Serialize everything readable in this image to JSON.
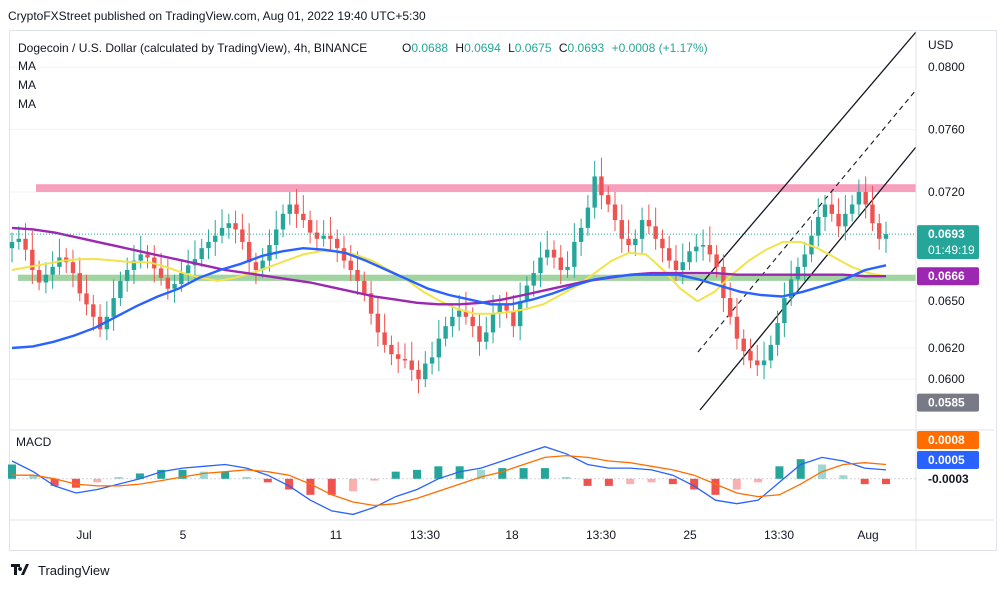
{
  "header": {
    "publisher_line": "CryptoFXStreet published on TradingView.com, Aug 01, 2022 19:40 UTC+5:30",
    "symbol_desc": "Dogecoin / U.S. Dollar (calculated by TradingView), 4h, BINANCE",
    "ohlc": {
      "o_label": "O",
      "o": "0.0688",
      "h_label": "H",
      "h": "0.0694",
      "l_label": "L",
      "l": "0.0675",
      "c_label": "C",
      "c": "0.0693",
      "change": "+0.0008 (+1.17%)"
    },
    "ma_labels": [
      "MA",
      "MA",
      "MA"
    ]
  },
  "footer": {
    "brand": "TradingView"
  },
  "colors": {
    "up": "#26a69a",
    "down": "#ef5350",
    "ma_fast": "#f2e34a",
    "ma_mid": "#9c27b0",
    "ma_slow": "#2962ff",
    "resistance": "#f48fb1",
    "support": "#8bc98b",
    "macd_line": "#2962ff",
    "signal_line": "#ff6d00"
  },
  "chart_data": [
    {
      "type": "candlestick",
      "title": "Dogecoin / U.S. Dollar (calculated by TradingView), 4h, BINANCE",
      "ylabel": "USD",
      "ylim": [
        0.057,
        0.082
      ],
      "y_ticks": [
        "0.0800",
        "0.0760",
        "0.0720",
        "0.0650",
        "0.0620",
        "0.0600"
      ],
      "x_ticks": [
        "Jul",
        "5",
        "11",
        "13:30",
        "18",
        "13:30",
        "25",
        "13:30",
        "Aug"
      ],
      "price_labels": {
        "last": "0.0693",
        "countdown": "01:49:19",
        "ma_value": "0.0666",
        "low_marker": "0.0585"
      },
      "zones": [
        {
          "name": "resistance",
          "from": 0.072,
          "to": 0.0725
        },
        {
          "name": "support",
          "from": 0.0663,
          "to": 0.0667
        }
      ],
      "series": [
        {
          "name": "close",
          "values": [
            0.0688,
            0.069,
            0.0683,
            0.067,
            0.0662,
            0.0667,
            0.0672,
            0.0678,
            0.0675,
            0.0668,
            0.0655,
            0.0648,
            0.064,
            0.0632,
            0.064,
            0.0652,
            0.0663,
            0.067,
            0.0676,
            0.068,
            0.0678,
            0.0671,
            0.0665,
            0.0658,
            0.0661,
            0.0668,
            0.0673,
            0.0677,
            0.0684,
            0.0688,
            0.0692,
            0.0697,
            0.07,
            0.0696,
            0.0688,
            0.0675,
            0.067,
            0.0676,
            0.0686,
            0.0696,
            0.0706,
            0.0712,
            0.0706,
            0.0702,
            0.0694,
            0.069,
            0.0692,
            0.069,
            0.0684,
            0.0676,
            0.067,
            0.0663,
            0.0655,
            0.0642,
            0.063,
            0.0622,
            0.0616,
            0.0613,
            0.0612,
            0.0606,
            0.06,
            0.061,
            0.0614,
            0.0626,
            0.0634,
            0.064,
            0.0644,
            0.064,
            0.0634,
            0.0624,
            0.063,
            0.0642,
            0.0648,
            0.0644,
            0.0634,
            0.065,
            0.066,
            0.0668,
            0.0678,
            0.0683,
            0.0678,
            0.067,
            0.0672,
            0.0688,
            0.0697,
            0.071,
            0.073,
            0.0718,
            0.0712,
            0.0702,
            0.069,
            0.0686,
            0.069,
            0.0702,
            0.0698,
            0.069,
            0.0684,
            0.0676,
            0.067,
            0.0675,
            0.0682,
            0.0685,
            0.0686,
            0.068,
            0.0672,
            0.0652,
            0.064,
            0.0626,
            0.0618,
            0.0612,
            0.0609,
            0.0612,
            0.0622,
            0.0636,
            0.0652,
            0.0664,
            0.0672,
            0.068,
            0.0692,
            0.0704,
            0.0712,
            0.0706,
            0.0698,
            0.0706,
            0.0712,
            0.072,
            0.0712,
            0.07,
            0.069,
            0.0693
          ]
        },
        {
          "name": "MA",
          "values": [
            0.067,
            0.0672,
            0.0674,
            0.0676,
            0.0677,
            0.0677,
            0.0676,
            0.0675,
            0.0675,
            0.0672,
            0.0668,
            0.0665,
            0.0663,
            0.0665,
            0.0668,
            0.0672,
            0.0676,
            0.068,
            0.0682,
            0.0682,
            0.068,
            0.0676,
            0.067,
            0.0664,
            0.0656,
            0.065,
            0.0645,
            0.0642,
            0.0642,
            0.0643,
            0.0645,
            0.0648,
            0.0654,
            0.066,
            0.0668,
            0.0676,
            0.0681,
            0.068,
            0.067,
            0.0658,
            0.065,
            0.0656,
            0.0667,
            0.0676,
            0.0683,
            0.0688,
            0.0688,
            0.0684,
            0.0678,
            0.0672,
            0.0668,
            0.0666
          ]
        },
        {
          "name": "MA",
          "values": [
            0.0697,
            0.0696,
            0.0694,
            0.0691,
            0.0688,
            0.0685,
            0.0682,
            0.0679,
            0.0676,
            0.0673,
            0.067,
            0.0668,
            0.0666,
            0.0664,
            0.0662,
            0.0659,
            0.0656,
            0.0653,
            0.0651,
            0.0649,
            0.0648,
            0.0648,
            0.0649,
            0.0651,
            0.0654,
            0.0657,
            0.066,
            0.0663,
            0.0665,
            0.0667,
            0.0668,
            0.0668,
            0.0668,
            0.0668,
            0.0667,
            0.0667,
            0.0667,
            0.0667,
            0.0667,
            0.0667,
            0.0666,
            0.0666
          ]
        },
        {
          "name": "MA",
          "values": [
            0.062,
            0.0621,
            0.0624,
            0.0628,
            0.0633,
            0.064,
            0.0647,
            0.0653,
            0.0658,
            0.0665,
            0.067,
            0.0674,
            0.0679,
            0.0682,
            0.0684,
            0.0683,
            0.0681,
            0.0676,
            0.067,
            0.0664,
            0.0658,
            0.0654,
            0.0651,
            0.0648,
            0.0648,
            0.0651,
            0.0655,
            0.066,
            0.0664,
            0.0666,
            0.0667,
            0.0667,
            0.0667,
            0.0664,
            0.066,
            0.0656,
            0.0654,
            0.0653,
            0.0656,
            0.066,
            0.0664,
            0.067,
            0.0673
          ]
        }
      ]
    },
    {
      "type": "line",
      "title": "MACD",
      "ylim": [
        -0.0022,
        0.0024
      ],
      "price_labels": {
        "signal": "0.0008",
        "macd": "0.0005",
        "histogram": "-0.0003"
      },
      "series": [
        {
          "name": "MACD",
          "values": [
            0.001,
            0.0004,
            -0.0004,
            -0.0008,
            -0.0006,
            -0.0003,
            0.0,
            0.0004,
            0.0006,
            0.0007,
            0.0008,
            0.0006,
            0.0002,
            -0.0004,
            -0.0012,
            -0.0018,
            -0.002,
            -0.0016,
            -0.001,
            -0.0006,
            0.0,
            0.0004,
            0.0006,
            0.001,
            0.0014,
            0.0018,
            0.0014,
            0.0008,
            0.0006,
            0.0006,
            0.0005,
            0.0002,
            -0.0004,
            -0.0012,
            -0.0014,
            -0.0012,
            -0.0002,
            0.0008,
            0.0012,
            0.001,
            0.0006,
            0.0005
          ]
        },
        {
          "name": "Signal",
          "values": [
            0.0002,
            0.0002,
            0.0,
            -0.0003,
            -0.0004,
            -0.0004,
            -0.0003,
            -0.0001,
            0.0001,
            0.0003,
            0.0004,
            0.0005,
            0.0004,
            0.0002,
            -0.0003,
            -0.0009,
            -0.0013,
            -0.0015,
            -0.0014,
            -0.0011,
            -0.0007,
            -0.0003,
            0.0001,
            0.0004,
            0.0008,
            0.0012,
            0.0013,
            0.0012,
            0.001,
            0.0009,
            0.0007,
            0.0005,
            0.0002,
            -0.0003,
            -0.0008,
            -0.001,
            -0.0009,
            -0.0003,
            0.0004,
            0.0008,
            0.0009,
            0.0008
          ]
        },
        {
          "name": "Histogram",
          "values": [
            0.0008,
            0.0002,
            -0.0004,
            -0.0005,
            -0.0002,
            0.0001,
            0.0003,
            0.0005,
            0.0005,
            0.0004,
            0.0004,
            0.0001,
            -0.0002,
            -0.0006,
            -0.0009,
            -0.0009,
            -0.0007,
            -0.0001,
            0.0004,
            0.0005,
            0.0007,
            0.0007,
            0.0005,
            0.0006,
            0.0006,
            0.0006,
            0.0001,
            -0.0004,
            -0.0004,
            -0.0003,
            -0.0002,
            -0.0003,
            -0.0006,
            -0.0009,
            -0.0006,
            -0.0002,
            0.0007,
            0.0011,
            0.0008,
            0.0002,
            -0.0003,
            -0.0003
          ]
        }
      ]
    }
  ]
}
